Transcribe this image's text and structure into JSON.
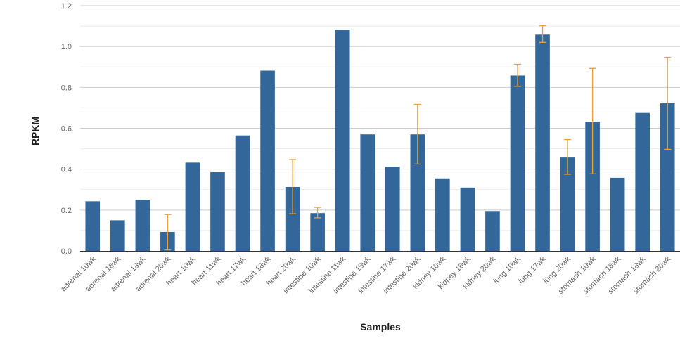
{
  "chart_data": {
    "type": "bar",
    "xlabel": "Samples",
    "ylabel": "RPKM",
    "ylim": [
      0,
      1.2
    ],
    "yticks": [
      "0.0",
      "0.2",
      "0.4",
      "0.6",
      "0.8",
      "1.0",
      "1.2"
    ],
    "grid": true,
    "categories": [
      "adrenal 10wk",
      "adrenal 16wk",
      "adrenal 18wk",
      "adrenal 20wk",
      "heart 10wk",
      "heart 11wk",
      "heart 17wk",
      "heart 18wk",
      "heart 20wk",
      "intestine 10wk",
      "intestine 11wk",
      "intestine 15wk",
      "intestine 17wk",
      "intestine 20wk",
      "kidney 10wk",
      "kidney 16wk",
      "kidney 20wk",
      "lung 10wk",
      "lung 17wk",
      "lung 20wk",
      "stomach 10wk",
      "stomach 16wk",
      "stomach 18wk",
      "stomach 20wk"
    ],
    "values": [
      0.243,
      0.15,
      0.25,
      0.093,
      0.432,
      0.385,
      0.565,
      0.882,
      0.313,
      0.185,
      1.082,
      0.57,
      0.412,
      0.57,
      0.355,
      0.31,
      0.195,
      0.858,
      1.058,
      0.457,
      0.632,
      0.358,
      0.675,
      0.722
    ],
    "error_bars": [
      null,
      null,
      null,
      [
        0.005,
        0.178
      ],
      null,
      null,
      null,
      null,
      [
        0.182,
        0.447
      ],
      [
        0.162,
        0.213
      ],
      null,
      null,
      null,
      [
        0.425,
        0.717
      ],
      null,
      null,
      null,
      [
        0.805,
        0.913
      ],
      [
        1.02,
        1.102
      ],
      [
        0.375,
        0.545
      ],
      [
        0.377,
        0.893
      ],
      null,
      null,
      [
        0.497,
        0.947
      ]
    ],
    "colors": {
      "bar": "#336699",
      "error": "#f0a030",
      "grid": "#cccccc",
      "minor_grid": "#ebebeb",
      "axis": "#333333"
    }
  }
}
